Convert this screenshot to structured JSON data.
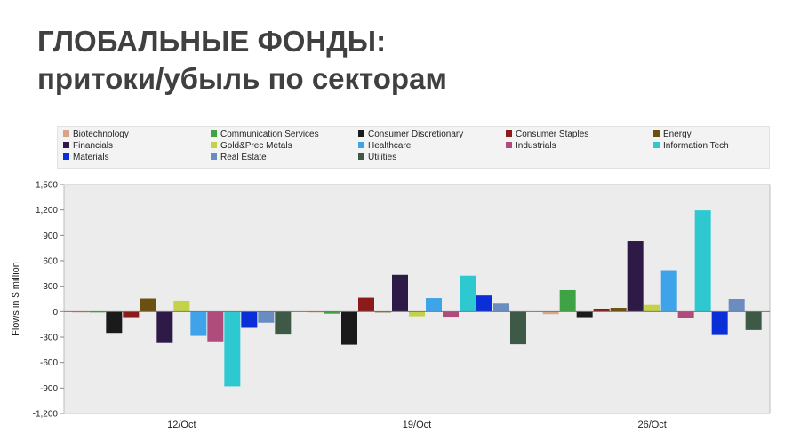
{
  "title": {
    "line1": "ГЛОБАЛЬНЫЕ ФОНДЫ:",
    "line2": "притоки/убыль по секторам"
  },
  "chart_data": {
    "type": "bar",
    "categories": [
      "12/Oct",
      "19/Oct",
      "26/Oct"
    ],
    "ylabel": "Flows in $ million",
    "ylim": [
      -1200,
      1500
    ],
    "yticks": [
      1500,
      1200,
      900,
      600,
      300,
      0,
      -300,
      -600,
      -900,
      -1200
    ],
    "ytick_labels": [
      "1,500",
      "1,200",
      "900",
      "600",
      "300",
      "0",
      "-300",
      "-600",
      "-900",
      "-1,200"
    ],
    "grid": false,
    "legend_position": "top",
    "series": [
      {
        "name": "Biotechnology",
        "color": "#d9a58a",
        "values": [
          -5,
          -5,
          -30
        ]
      },
      {
        "name": "Communication Services",
        "color": "#3fa346",
        "values": [
          -5,
          -25,
          255
        ]
      },
      {
        "name": "Consumer Discretionary",
        "color": "#1a1a1a",
        "values": [
          -250,
          -390,
          -65
        ]
      },
      {
        "name": "Consumer Staples",
        "color": "#8b1a1a",
        "values": [
          -65,
          165,
          35
        ]
      },
      {
        "name": "Energy",
        "color": "#6b5010",
        "values": [
          155,
          -10,
          45
        ]
      },
      {
        "name": "Financials",
        "color": "#2e1a47",
        "values": [
          -370,
          435,
          830
        ]
      },
      {
        "name": "Gold&Prec Metals",
        "color": "#c4d24a",
        "values": [
          130,
          -55,
          80
        ]
      },
      {
        "name": "Healthcare",
        "color": "#3fa3ea",
        "values": [
          -285,
          160,
          490
        ]
      },
      {
        "name": "Industrials",
        "color": "#b04c7c",
        "values": [
          -350,
          -60,
          -75
        ]
      },
      {
        "name": "Information Tech",
        "color": "#2ec8d0",
        "values": [
          -880,
          425,
          1195
        ]
      },
      {
        "name": "Materials",
        "color": "#0a2ed8",
        "values": [
          -190,
          190,
          -275
        ]
      },
      {
        "name": "Real Estate",
        "color": "#6b8cc0",
        "values": [
          -130,
          95,
          150
        ]
      },
      {
        "name": "Utilities",
        "color": "#3e5a46",
        "values": [
          -270,
          -385,
          -215
        ]
      }
    ]
  }
}
